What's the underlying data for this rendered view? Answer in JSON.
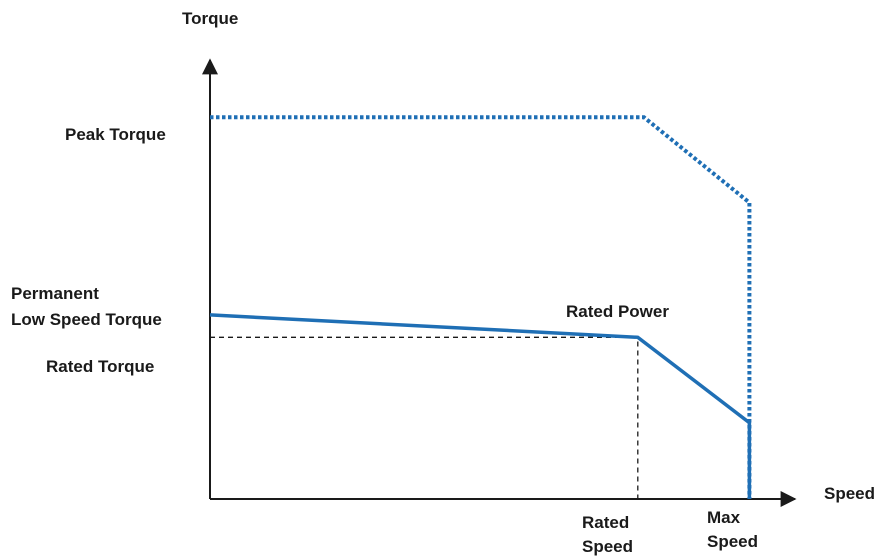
{
  "chart_data": {
    "type": "line",
    "xlabel": "Speed",
    "ylabel": "Torque",
    "x_ticks": [
      {
        "key": "rated_speed",
        "lines": [
          "Rated",
          "Speed"
        ],
        "value": 0.69
      },
      {
        "key": "max_speed",
        "lines": [
          "Max",
          "Speed"
        ],
        "value": 0.87
      }
    ],
    "y_ticks": [
      {
        "key": "peak_torque",
        "lines": [
          "Peak Torque"
        ],
        "value": 0.85
      },
      {
        "key": "permanent_low_speed_torque",
        "lines": [
          "Permanent",
          "Low Speed Torque"
        ],
        "value": 0.41
      },
      {
        "key": "rated_torque",
        "lines": [
          "Rated Torque"
        ],
        "value": 0.36
      }
    ],
    "annotations": [
      {
        "key": "rated_power",
        "text": "Rated Power",
        "at": {
          "x": 0.69,
          "y": 0.36
        }
      }
    ],
    "xlim": [
      0,
      1
    ],
    "ylim": [
      0,
      1.1
    ],
    "grid": false,
    "series": [
      {
        "key": "peak",
        "style": "dotted",
        "color": "#1f6fb5",
        "points": [
          [
            0,
            0.85
          ],
          [
            0.7,
            0.85
          ],
          [
            0.87,
            0.66
          ],
          [
            0.87,
            0
          ]
        ]
      },
      {
        "key": "permanent",
        "style": "solid",
        "color": "#1f6fb5",
        "points": [
          [
            0,
            0.41
          ],
          [
            0.69,
            0.36
          ],
          [
            0.87,
            0.17
          ],
          [
            0.87,
            0
          ]
        ]
      }
    ],
    "guides": [
      {
        "style": "dashed",
        "color": "#1a1a1a",
        "points": [
          [
            0,
            0.36
          ],
          [
            0.69,
            0.36
          ],
          [
            0.69,
            0
          ]
        ]
      }
    ]
  }
}
